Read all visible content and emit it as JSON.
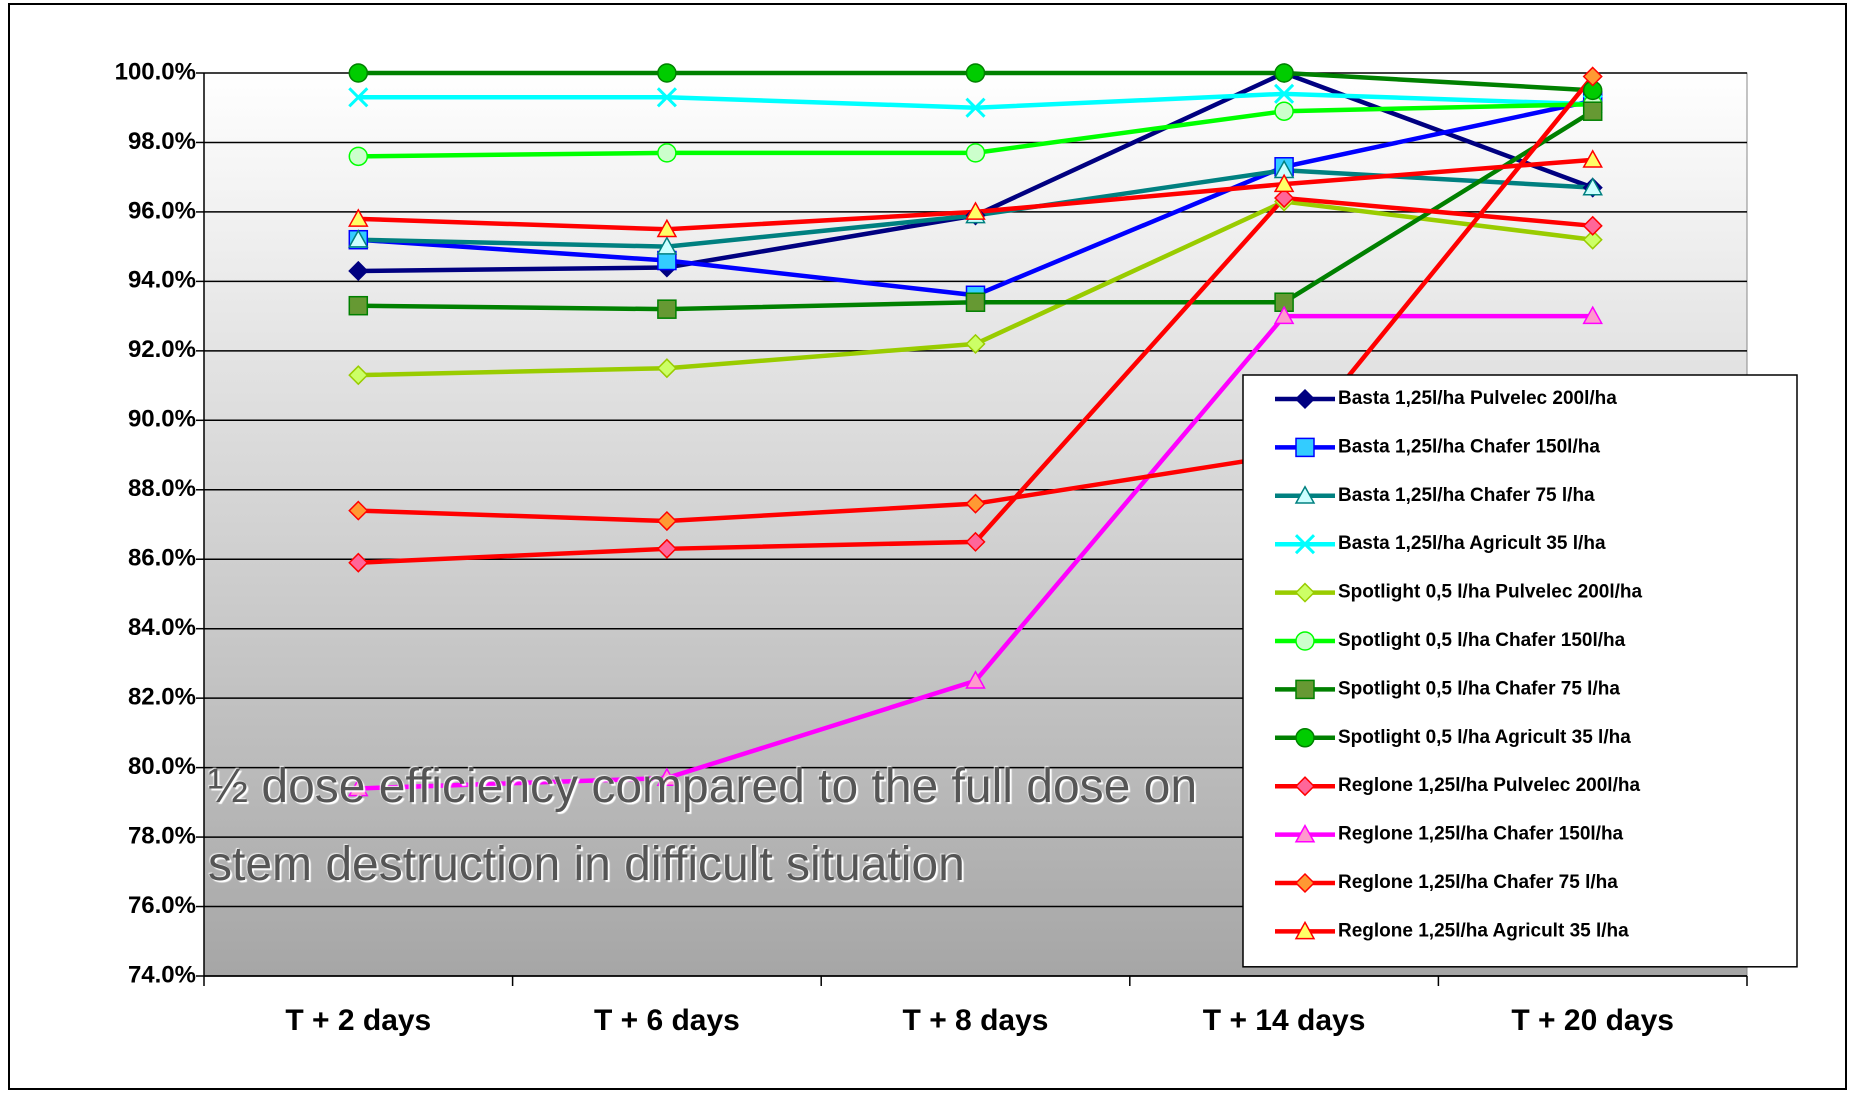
{
  "chart_data": {
    "type": "line",
    "annotation": "½ dose efficiency compared to the full dose on stem destruction in difficult situation",
    "categories": [
      "T + 2 days",
      "T + 6 days",
      "T + 8 days",
      "T + 14 days",
      "T + 20  days"
    ],
    "ylim": [
      74,
      100
    ],
    "yticks": [
      {
        "value": 74,
        "label": "74.0%"
      },
      {
        "value": 76,
        "label": "76.0%"
      },
      {
        "value": 78,
        "label": "78.0%"
      },
      {
        "value": 80,
        "label": "80.0%"
      },
      {
        "value": 82,
        "label": "82.0%"
      },
      {
        "value": 84,
        "label": "84.0%"
      },
      {
        "value": 86,
        "label": "86.0%"
      },
      {
        "value": 88,
        "label": "88.0%"
      },
      {
        "value": 90,
        "label": "90.0%"
      },
      {
        "value": 92,
        "label": "92.0%"
      },
      {
        "value": 94,
        "label": "94.0%"
      },
      {
        "value": 96,
        "label": "96.0%"
      },
      {
        "value": 98,
        "label": "98.0%"
      },
      {
        "value": 100,
        "label": "100.0%"
      }
    ],
    "grid": true,
    "legend": "right",
    "series": [
      {
        "name": "Basta 1,25l/ha Pulvelec 200l/ha",
        "color": "#000080",
        "marker": "diamond",
        "marker_color": "#000080",
        "values": [
          94.3,
          94.4,
          95.9,
          100.0,
          96.7
        ]
      },
      {
        "name": "Basta 1,25l/ha Chafer 150l/ha",
        "color": "#0000ff",
        "marker": "square",
        "marker_color": "#33ccff",
        "values": [
          95.2,
          94.6,
          93.6,
          97.3,
          99.2
        ]
      },
      {
        "name": "Basta 1,25l/ha Chafer 75 l/ha",
        "color": "#008080",
        "marker": "triangle",
        "marker_color": "#ccffff",
        "values": [
          95.2,
          95.0,
          95.9,
          97.2,
          96.7
        ]
      },
      {
        "name": "Basta 1,25l/ha Agricult 35 l/ha",
        "color": "#00ffff",
        "marker": "x",
        "marker_color": "#00ffff",
        "values": [
          99.3,
          99.3,
          99.0,
          99.4,
          99.1
        ]
      },
      {
        "name": "Spotlight 0,5 l/ha Pulvelec 200l/ha",
        "color": "#99cc00",
        "marker": "diamond",
        "marker_color": "#ccff66",
        "values": [
          91.3,
          91.5,
          92.2,
          96.3,
          95.2
        ]
      },
      {
        "name": "Spotlight 0,5 l/ha Chafer 150l/ha",
        "color": "#00ff00",
        "marker": "circle",
        "marker_color": "#ccffcc",
        "values": [
          97.6,
          97.7,
          97.7,
          98.9,
          99.1
        ]
      },
      {
        "name": "Spotlight 0,5 l/ha Chafer 75 l/ha",
        "color": "#008000",
        "marker": "square",
        "marker_color": "#669933",
        "values": [
          93.3,
          93.2,
          93.4,
          93.4,
          98.9
        ]
      },
      {
        "name": "Spotlight 0,5 l/ha Agricult 35 l/ha",
        "color": "#008000",
        "marker": "circle",
        "marker_color": "#00cc00",
        "values": [
          100.0,
          100.0,
          100.0,
          100.0,
          99.5
        ]
      },
      {
        "name": "Reglone 1,25l/ha Pulvelec 200l/ha",
        "color": "#ff0000",
        "marker": "diamond",
        "marker_color": "#ff6699",
        "values": [
          85.9,
          86.3,
          86.5,
          96.4,
          95.6
        ]
      },
      {
        "name": "Reglone 1,25l/ha Chafer 150l/ha",
        "color": "#ff00ff",
        "marker": "triangle",
        "marker_color": "#ff99cc",
        "values": [
          79.4,
          79.7,
          82.5,
          93.0,
          93.0
        ]
      },
      {
        "name": "Reglone 1,25l/ha Chafer 75 l/ha",
        "color": "#ff0000",
        "marker": "diamond",
        "marker_color": "#ff9933",
        "values": [
          87.4,
          87.1,
          87.6,
          89.0,
          99.9
        ]
      },
      {
        "name": "Reglone 1,25l/ha Agricult 35 l/ha",
        "color": "#ff0000",
        "marker": "triangle",
        "marker_color": "#ffff66",
        "values": [
          95.8,
          95.5,
          96.0,
          96.8,
          97.5
        ]
      }
    ]
  }
}
